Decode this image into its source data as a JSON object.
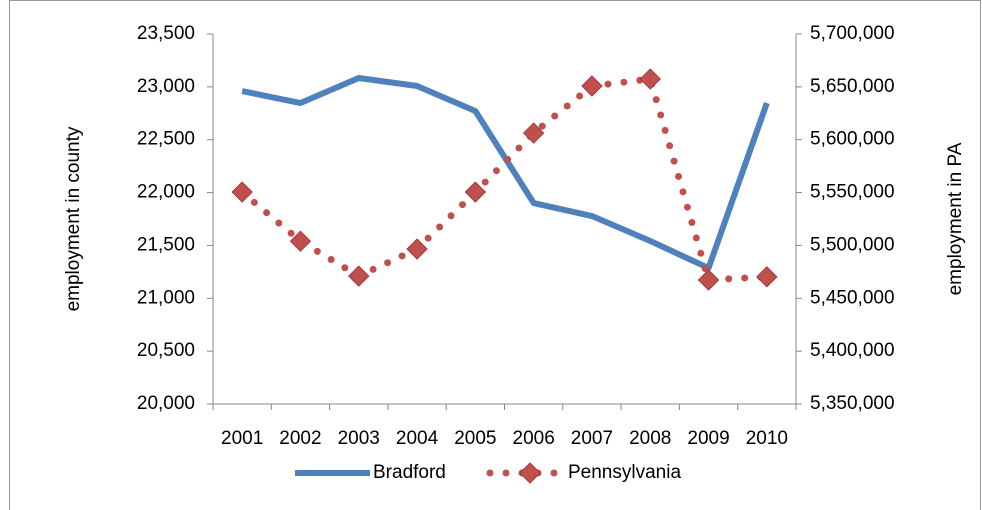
{
  "chart_data": {
    "type": "line",
    "categories": [
      "2001",
      "2002",
      "2003",
      "2004",
      "2005",
      "2006",
      "2007",
      "2008",
      "2009",
      "2010"
    ],
    "series": [
      {
        "name": "Bradford",
        "color": "#4f81bd",
        "values": [
          22960,
          22847,
          23084,
          23008,
          22772,
          21901,
          21778,
          21542,
          21286,
          22847
        ]
      },
      {
        "name": "Pennsylvania",
        "color": "#c0504d",
        "axis": "y2",
        "values": [
          5550500,
          5504000,
          5471000,
          5496600,
          5550500,
          5606300,
          5650800,
          5657400,
          5467300,
          5470300
        ]
      }
    ],
    "ylabel": "employment in county",
    "y2label": "employment in PA",
    "ylim": [
      20000,
      23500
    ],
    "yticks": [
      {
        "value": 20000,
        "label": "20,000"
      },
      {
        "value": 20500,
        "label": "20,500"
      },
      {
        "value": 21000,
        "label": "21,000"
      },
      {
        "value": 21500,
        "label": "21,500"
      },
      {
        "value": 22000,
        "label": "22,000"
      },
      {
        "value": 22500,
        "label": "22,500"
      },
      {
        "value": 23000,
        "label": "23,000"
      },
      {
        "value": 23500,
        "label": "23,500"
      }
    ],
    "y2lim": [
      5350000,
      5700000
    ],
    "y2ticks": [
      {
        "value": 5350000,
        "label": "5,350,000"
      },
      {
        "value": 5400000,
        "label": "5,400,000"
      },
      {
        "value": 5450000,
        "label": "5,450,000"
      },
      {
        "value": 5500000,
        "label": "5,500,000"
      },
      {
        "value": 5550000,
        "label": "5,550,000"
      },
      {
        "value": 5600000,
        "label": "5,600,000"
      },
      {
        "value": 5650000,
        "label": "5,650,000"
      },
      {
        "value": 5700000,
        "label": "5,700,000"
      }
    ],
    "legend": "bottom"
  }
}
